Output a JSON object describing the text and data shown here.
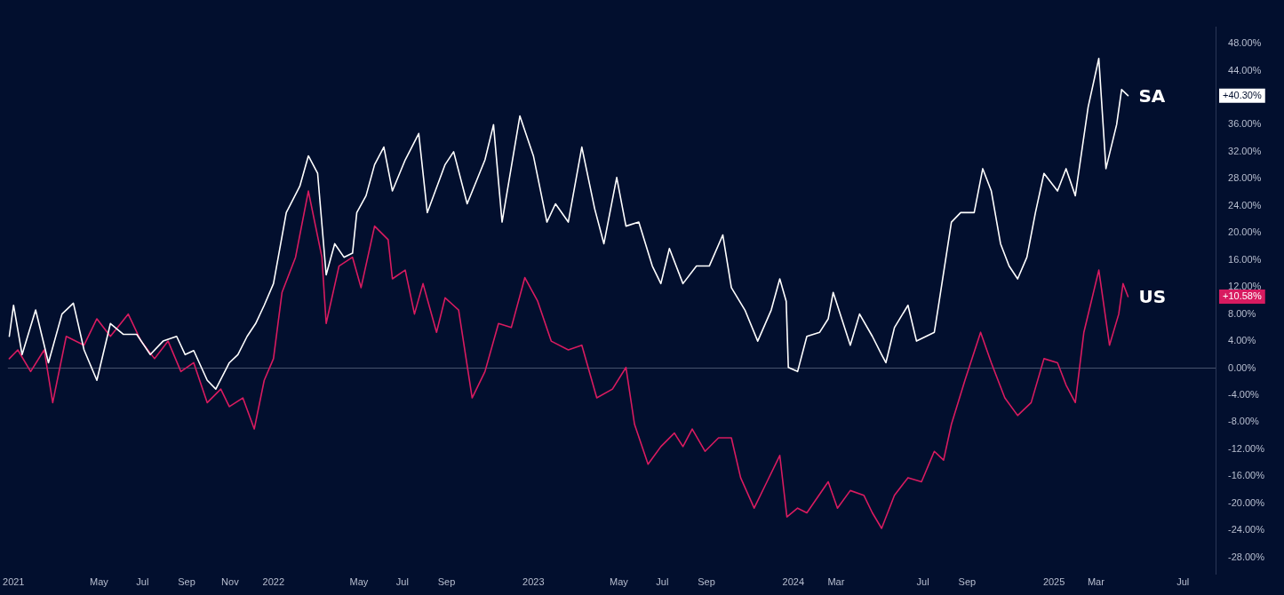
{
  "chart_data": {
    "type": "line",
    "xlim": [
      "2020-12-24",
      "2025-08-16"
    ],
    "ylim": [
      -30.5,
      50.5
    ],
    "xticks": [
      {
        "value": "2021-01-01",
        "label": "2021"
      },
      {
        "value": "2021-05-01",
        "label": "May"
      },
      {
        "value": "2021-07-01",
        "label": "Jul"
      },
      {
        "value": "2021-09-01",
        "label": "Sep"
      },
      {
        "value": "2021-11-01",
        "label": "Nov"
      },
      {
        "value": "2022-01-01",
        "label": "2022"
      },
      {
        "value": "2022-05-01",
        "label": "May"
      },
      {
        "value": "2022-07-01",
        "label": "Jul"
      },
      {
        "value": "2022-09-01",
        "label": "Sep"
      },
      {
        "value": "2023-01-01",
        "label": "2023"
      },
      {
        "value": "2023-05-01",
        "label": "May"
      },
      {
        "value": "2023-07-01",
        "label": "Jul"
      },
      {
        "value": "2023-09-01",
        "label": "Sep"
      },
      {
        "value": "2024-01-01",
        "label": "2024"
      },
      {
        "value": "2024-03-01",
        "label": "Mar"
      },
      {
        "value": "2024-07-01",
        "label": "Jul"
      },
      {
        "value": "2024-09-01",
        "label": "Sep"
      },
      {
        "value": "2025-01-01",
        "label": "2025"
      },
      {
        "value": "2025-03-01",
        "label": "Mar"
      },
      {
        "value": "2025-07-01",
        "label": "Jul"
      }
    ],
    "yticks": [
      {
        "value": -28,
        "label": "-28.00%"
      },
      {
        "value": -24,
        "label": "-24.00%"
      },
      {
        "value": -20,
        "label": "-20.00%"
      },
      {
        "value": -16,
        "label": "-16.00%"
      },
      {
        "value": -12,
        "label": "-12.00%"
      },
      {
        "value": -8,
        "label": "-8.00%"
      },
      {
        "value": -4,
        "label": "-4.00%"
      },
      {
        "value": 0,
        "label": "0.00%"
      },
      {
        "value": 4,
        "label": "4.00%"
      },
      {
        "value": 8,
        "label": "8.00%"
      },
      {
        "value": 12,
        "label": "12.00%"
      },
      {
        "value": 16,
        "label": "16.00%"
      },
      {
        "value": 20,
        "label": "20.00%"
      },
      {
        "value": 24,
        "label": "24.00%"
      },
      {
        "value": 28,
        "label": "28.00%"
      },
      {
        "value": 32,
        "label": "32.00%"
      },
      {
        "value": 36,
        "label": "36.00%"
      },
      {
        "value": 44,
        "label": "44.00%"
      },
      {
        "value": 48,
        "label": "48.00%"
      }
    ],
    "grid": false,
    "legend": false,
    "marker": "none",
    "line_style": "solid",
    "ref_lines": [
      {
        "axis": "y",
        "value": 0,
        "color": "#4a5570"
      }
    ],
    "annotations": [
      "+40.30%",
      "+10.58%"
    ],
    "series": [
      {
        "name": "SA",
        "color": "#ffffff",
        "x": [
          "2020-12-26",
          "2021-01-01",
          "2021-01-13",
          "2021-02-01",
          "2021-02-19",
          "2021-03-10",
          "2021-03-26",
          "2021-04-10",
          "2021-04-28",
          "2021-05-17",
          "2021-06-04",
          "2021-06-23",
          "2021-07-12",
          "2021-07-30",
          "2021-08-18",
          "2021-08-30",
          "2021-09-11",
          "2021-09-30",
          "2021-10-12",
          "2021-10-31",
          "2021-11-12",
          "2021-11-25",
          "2021-12-07",
          "2021-12-19",
          "2022-01-01",
          "2022-01-19",
          "2022-02-07",
          "2022-02-19",
          "2022-03-04",
          "2022-03-16",
          "2022-03-28",
          "2022-04-10",
          "2022-04-22",
          "2022-04-28",
          "2022-05-11",
          "2022-05-23",
          "2022-06-05",
          "2022-06-17",
          "2022-07-05",
          "2022-07-24",
          "2022-08-05",
          "2022-08-30",
          "2022-09-11",
          "2022-09-30",
          "2022-10-25",
          "2022-11-06",
          "2022-11-18",
          "2022-12-13",
          "2023-01-01",
          "2023-01-20",
          "2023-02-01",
          "2023-02-19",
          "2023-03-10",
          "2023-03-28",
          "2023-04-10",
          "2023-04-28",
          "2023-05-11",
          "2023-05-29",
          "2023-06-17",
          "2023-06-29",
          "2023-07-11",
          "2023-07-30",
          "2023-08-18",
          "2023-09-05",
          "2023-09-24",
          "2023-10-06",
          "2023-10-25",
          "2023-11-12",
          "2023-12-01",
          "2023-12-13",
          "2023-12-22",
          "2023-12-25",
          "2024-01-07",
          "2024-01-20",
          "2024-02-07",
          "2024-02-19",
          "2024-02-26",
          "2024-03-09",
          "2024-03-21",
          "2024-04-03",
          "2024-04-21",
          "2024-05-04",
          "2024-05-10",
          "2024-05-22",
          "2024-06-10",
          "2024-06-22",
          "2024-07-17",
          "2024-07-23",
          "2024-08-10",
          "2024-08-23",
          "2024-09-11",
          "2024-09-23",
          "2024-10-05",
          "2024-10-18",
          "2024-10-30",
          "2024-11-11",
          "2024-11-24",
          "2024-12-06",
          "2024-12-18",
          "2025-01-06",
          "2025-01-18",
          "2025-01-31",
          "2025-02-18",
          "2025-03-05",
          "2025-03-15",
          "2025-03-30",
          "2025-04-06",
          "2025-04-15"
        ],
        "values": [
          4.7,
          9.3,
          2,
          8.6,
          0.8,
          8,
          9.6,
          2.7,
          -1.8,
          6.6,
          5,
          5,
          2,
          4,
          4.7,
          2,
          2.6,
          -1.8,
          -3.1,
          0.8,
          2,
          4.7,
          6.6,
          9.3,
          12.5,
          23,
          26.9,
          31.4,
          28.8,
          13.8,
          18.4,
          16.4,
          17,
          23,
          25.5,
          30.1,
          32.7,
          26.2,
          30.8,
          34.7,
          23,
          30.1,
          32,
          24.3,
          30.8,
          36,
          21.6,
          37.3,
          31.4,
          21.6,
          24.3,
          21.6,
          32.7,
          23.6,
          18.4,
          28.2,
          21,
          21.6,
          15.1,
          12.5,
          17.7,
          12.5,
          15.1,
          15.1,
          19.7,
          11.9,
          8.6,
          4,
          8.6,
          13.2,
          9.9,
          0.1,
          -0.5,
          4.7,
          5.3,
          7.3,
          11.2,
          7.3,
          3.4,
          8,
          4.7,
          2,
          0.8,
          6,
          9.3,
          4,
          5.3,
          9.3,
          21.6,
          23,
          23,
          29.5,
          26.2,
          18.4,
          15.1,
          13.2,
          16.4,
          23,
          28.8,
          26.2,
          29.5,
          25.5,
          38.6,
          45.8,
          29.5,
          36,
          41.2,
          40.3
        ]
      },
      {
        "name": "US",
        "color": "#d81b60",
        "x": [
          "2020-12-26",
          "2021-01-07",
          "2021-01-25",
          "2021-02-13",
          "2021-02-25",
          "2021-03-16",
          "2021-04-10",
          "2021-04-28",
          "2021-05-17",
          "2021-06-11",
          "2021-06-29",
          "2021-07-18",
          "2021-08-06",
          "2021-08-24",
          "2021-09-11",
          "2021-09-30",
          "2021-10-19",
          "2021-10-31",
          "2021-11-19",
          "2021-12-05",
          "2021-12-19",
          "2022-01-01",
          "2022-01-13",
          "2022-02-01",
          "2022-02-19",
          "2022-03-10",
          "2022-03-16",
          "2022-04-03",
          "2022-04-22",
          "2022-05-04",
          "2022-05-23",
          "2022-06-11",
          "2022-06-17",
          "2022-07-05",
          "2022-07-18",
          "2022-07-30",
          "2022-08-18",
          "2022-08-30",
          "2022-09-18",
          "2022-10-07",
          "2022-10-25",
          "2022-11-13",
          "2022-12-01",
          "2022-12-20",
          "2023-01-07",
          "2023-01-26",
          "2023-02-19",
          "2023-03-10",
          "2023-03-31",
          "2023-04-22",
          "2023-05-11",
          "2023-05-23",
          "2023-06-11",
          "2023-06-29",
          "2023-07-18",
          "2023-07-30",
          "2023-08-12",
          "2023-08-30",
          "2023-09-18",
          "2023-10-06",
          "2023-10-19",
          "2023-11-07",
          "2023-11-25",
          "2023-12-13",
          "2023-12-23",
          "2024-01-07",
          "2024-01-20",
          "2024-02-19",
          "2024-03-03",
          "2024-03-21",
          "2024-04-09",
          "2024-04-21",
          "2024-05-04",
          "2024-05-22",
          "2024-06-10",
          "2024-06-29",
          "2024-07-17",
          "2024-07-30",
          "2024-08-10",
          "2024-08-29",
          "2024-09-20",
          "2024-10-05",
          "2024-10-24",
          "2024-11-11",
          "2024-11-30",
          "2024-12-18",
          "2025-01-06",
          "2025-01-18",
          "2025-01-31",
          "2025-02-12",
          "2025-03-05",
          "2025-03-20",
          "2025-04-02",
          "2025-04-08",
          "2025-04-15"
        ],
        "values": [
          1.4,
          2.7,
          -0.5,
          2.7,
          -5.1,
          4.7,
          3.4,
          7.3,
          4.7,
          8,
          4,
          1.4,
          4,
          -0.5,
          0.8,
          -5.1,
          -3.1,
          -5.7,
          -4.4,
          -9,
          -1.8,
          1.4,
          11.2,
          16.4,
          26.2,
          16.4,
          6.6,
          15.1,
          16.4,
          11.9,
          21,
          19,
          13.2,
          14.5,
          8,
          12.5,
          5.3,
          10.4,
          8.6,
          -4.4,
          -0.5,
          6.6,
          6,
          13.4,
          9.9,
          4,
          2.7,
          3.4,
          -4.4,
          -3.1,
          0.1,
          -8.3,
          -14.2,
          -11.6,
          -9.6,
          -11.6,
          -9,
          -12.3,
          -10.3,
          -10.3,
          -16.2,
          -20.7,
          -16.8,
          -12.9,
          -22,
          -20.7,
          -21.4,
          -16.8,
          -20.7,
          -18.1,
          -18.8,
          -21.4,
          -23.7,
          -18.8,
          -16.2,
          -16.8,
          -12.3,
          -13.6,
          -8.3,
          -1.8,
          5.3,
          0.8,
          -4.4,
          -7,
          -5.1,
          1.4,
          0.8,
          -2.5,
          -5.1,
          5.3,
          14.5,
          3.4,
          8,
          12.5,
          10.58
        ]
      }
    ]
  }
}
